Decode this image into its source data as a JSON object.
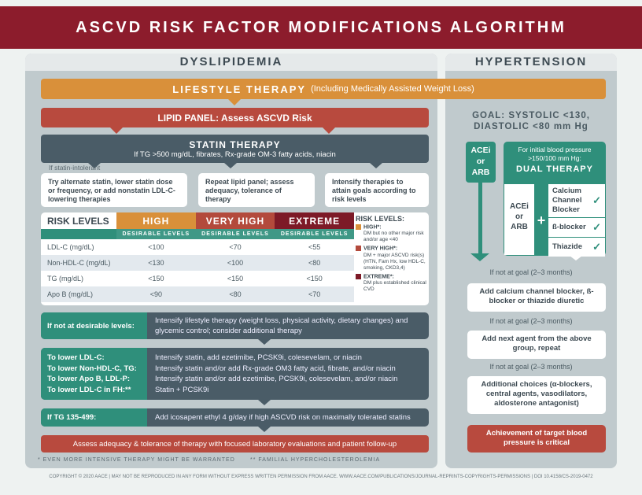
{
  "title": "ASCVD RISK FACTOR MODIFICATIONS ALGORITHM",
  "dyslipidemia": {
    "header": "DYSLIPIDEMIA",
    "lifestyle": {
      "label": "LIFESTYLE THERAPY",
      "sub": "(Including Medically Assisted Weight Loss)"
    },
    "lipid_panel": "LIPID PANEL: Assess ASCVD Risk",
    "statin": {
      "title": "STATIN THERAPY",
      "sub": "If TG >500 mg/dL, fibrates, Rx-grade OM-3 fatty acids, niacin"
    },
    "statin_intolerant": "If statin-intolerant",
    "steps": [
      "Try alternate statin, lower statin dose or frequency, or add nonstatin LDL-C- lowering therapies",
      "Repeat lipid panel; assess adequacy, tolerance of therapy",
      "Intensify therapies to attain goals according to risk levels"
    ],
    "table": {
      "header": "RISK LEVELS",
      "levels": [
        "HIGH",
        "VERY HIGH",
        "EXTREME"
      ],
      "level_colors": [
        "#d9903a",
        "#b34a3c",
        "#7d1a27"
      ],
      "subheader": "DESIRABLE LEVELS",
      "rows": [
        {
          "label": "LDL-C (mg/dL)",
          "values": [
            "<100",
            "<70",
            "<55"
          ]
        },
        {
          "label": "Non-HDL-C (mg/dL)",
          "values": [
            "<130",
            "<100",
            "<80"
          ]
        },
        {
          "label": "TG (mg/dL)",
          "values": [
            "<150",
            "<150",
            "<150"
          ]
        },
        {
          "label": "Apo B (mg/dL)",
          "values": [
            "<90",
            "<80",
            "<70"
          ]
        }
      ]
    },
    "legend": {
      "title": "RISK LEVELS:",
      "items": [
        {
          "label": "HIGH*:",
          "desc": "DM but no other major risk and/or age <40"
        },
        {
          "label": "VERY HIGH*:",
          "desc": "DM + major ASCVD risk(s) (HTN, Fam Hx, low HDL-C, smoking, CKD3,4)"
        },
        {
          "label": "EXTREME*:",
          "desc": "DM plus established clinical CVD"
        }
      ]
    },
    "not_desirable": {
      "label": "If not at desirable levels:",
      "text": "Intensify lifestyle therapy (weight loss, physical activity, dietary changes) and glycemic control; consider additional therapy"
    },
    "lower": [
      {
        "label": "To lower LDL-C:",
        "text": "Intensify statin, add ezetimibe, PCSK9i, colesevelam, or niacin"
      },
      {
        "label": "To lower Non-HDL-C, TG:",
        "text": "Intensify statin and/or add Rx-grade OM3 fatty acid, fibrate, and/or niacin"
      },
      {
        "label": "To lower Apo B, LDL-P:",
        "text": "Intensify statin and/or add ezetimibe, PCSK9i, colesevelam, and/or niacin"
      },
      {
        "label": "To lower LDL-C in FH:**",
        "text": "Statin + PCSK9i"
      }
    ],
    "tg": {
      "label": "If TG 135-499:",
      "text": "Add icosapent ethyl 4 g/day if high ASCVD risk on maximally tolerated statins"
    },
    "assess": "Assess adequacy & tolerance of therapy with focused laboratory evaluations and patient follow-up",
    "footnote1": "* EVEN MORE INTENSIVE THERAPY MIGHT BE WARRANTED",
    "footnote2": "** FAMILIAL HYPERCHOLESTEROLEMIA"
  },
  "hypertension": {
    "header": "HYPERTENSION",
    "goal1": "GOAL: SYSTOLIC <130,",
    "goal2": "DIASTOLIC <80 mm Hg",
    "acei": "ACEi or ARB",
    "dual_intro": "For initial blood pressure >150/100 mm Hg:",
    "dual_title": "DUAL THERAPY",
    "dual_left": "ACEi or ARB",
    "plus": "+",
    "options": [
      "Calcium Channel Blocker",
      "ß-blocker",
      "Thiazide"
    ],
    "check": "✓",
    "not_goal": "If not at goal (2–3 months)",
    "step1": "Add calcium channel blocker, ß-blocker or thiazide diuretic",
    "step2": "Add next agent from the above group, repeat",
    "step3": "Additional choices (α-blockers, central agents, vasodilators, aldosterone antagonist)",
    "final": "Achievement of target blood pressure is critical"
  },
  "copyright": "COPYRIGHT © 2020 AACE | MAY NOT BE REPRODUCED IN ANY FORM WITHOUT EXPRESS WRITTEN PERMISSION FROM AACE. WWW.AACE.COM/PUBLICATIONS/JOURNAL-REPRINTS-COPYRIGHTS-PERMISSIONS | DOI 10.4158/CS-2019-0472"
}
